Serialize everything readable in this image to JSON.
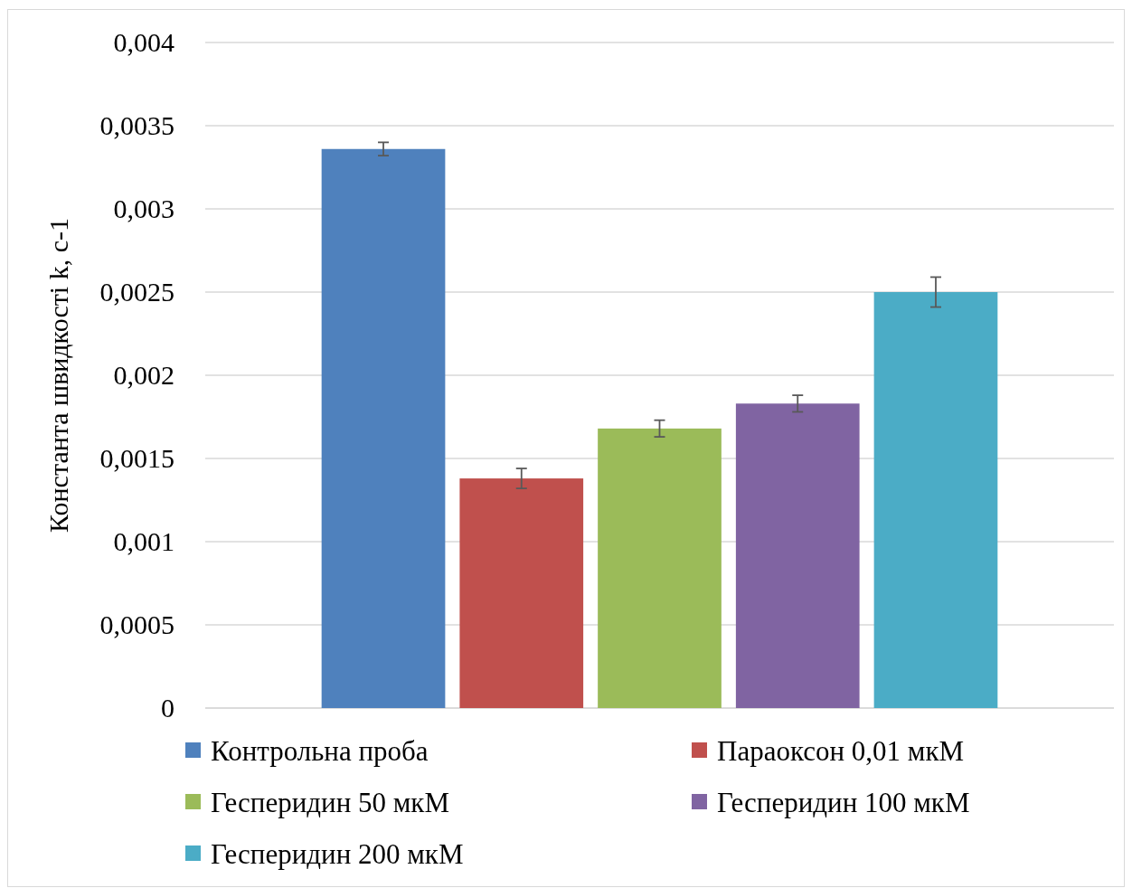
{
  "chart_data": {
    "type": "bar",
    "ylabel": "Константа швидкості k, с-1",
    "categories": [
      null
    ],
    "series": [
      {
        "name": "Контрольна проба",
        "color": "#4f81bd",
        "values": [
          0.00336
        ],
        "errors": [
          4e-05
        ]
      },
      {
        "name": "Параоксон 0,01 мкМ",
        "color": "#c0504d",
        "values": [
          0.00138
        ],
        "errors": [
          6e-05
        ]
      },
      {
        "name": "Гесперидин 50 мкМ",
        "color": "#9bbb59",
        "values": [
          0.00168
        ],
        "errors": [
          5e-05
        ]
      },
      {
        "name": "Гесперидин 100 мкМ",
        "color": "#8064a2",
        "values": [
          0.00183
        ],
        "errors": [
          5e-05
        ]
      },
      {
        "name": "Гесперидин 200 мкМ",
        "color": "#4bacc6",
        "values": [
          0.0025
        ],
        "errors": [
          9e-05
        ]
      }
    ],
    "ylim": [
      0,
      0.004
    ],
    "yticks": [
      {
        "value": 0,
        "label": "0"
      },
      {
        "value": 0.0005,
        "label": "0,0005"
      },
      {
        "value": 0.001,
        "label": "0,001"
      },
      {
        "value": 0.0015,
        "label": "0,0015"
      },
      {
        "value": 0.002,
        "label": "0,002"
      },
      {
        "value": 0.0025,
        "label": "0,0025"
      },
      {
        "value": 0.003,
        "label": "0,003"
      },
      {
        "value": 0.0035,
        "label": "0,0035"
      },
      {
        "value": 0.004,
        "label": "0,004"
      }
    ],
    "grid": "y",
    "legend": "bottom"
  }
}
